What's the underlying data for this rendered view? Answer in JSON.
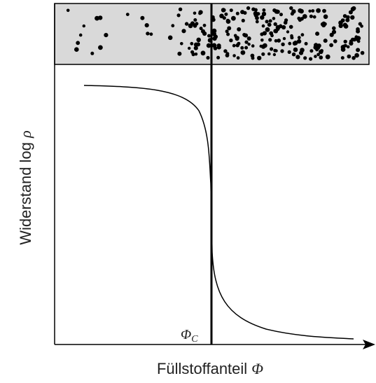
{
  "x_label": {
    "text": "Füllstoffanteil",
    "symbol": "Φ"
  },
  "y_label": {
    "text": "Widerstand log",
    "symbol": "ρ"
  },
  "threshold_label": {
    "symbol": "Φ",
    "subscript": "C"
  }
}
